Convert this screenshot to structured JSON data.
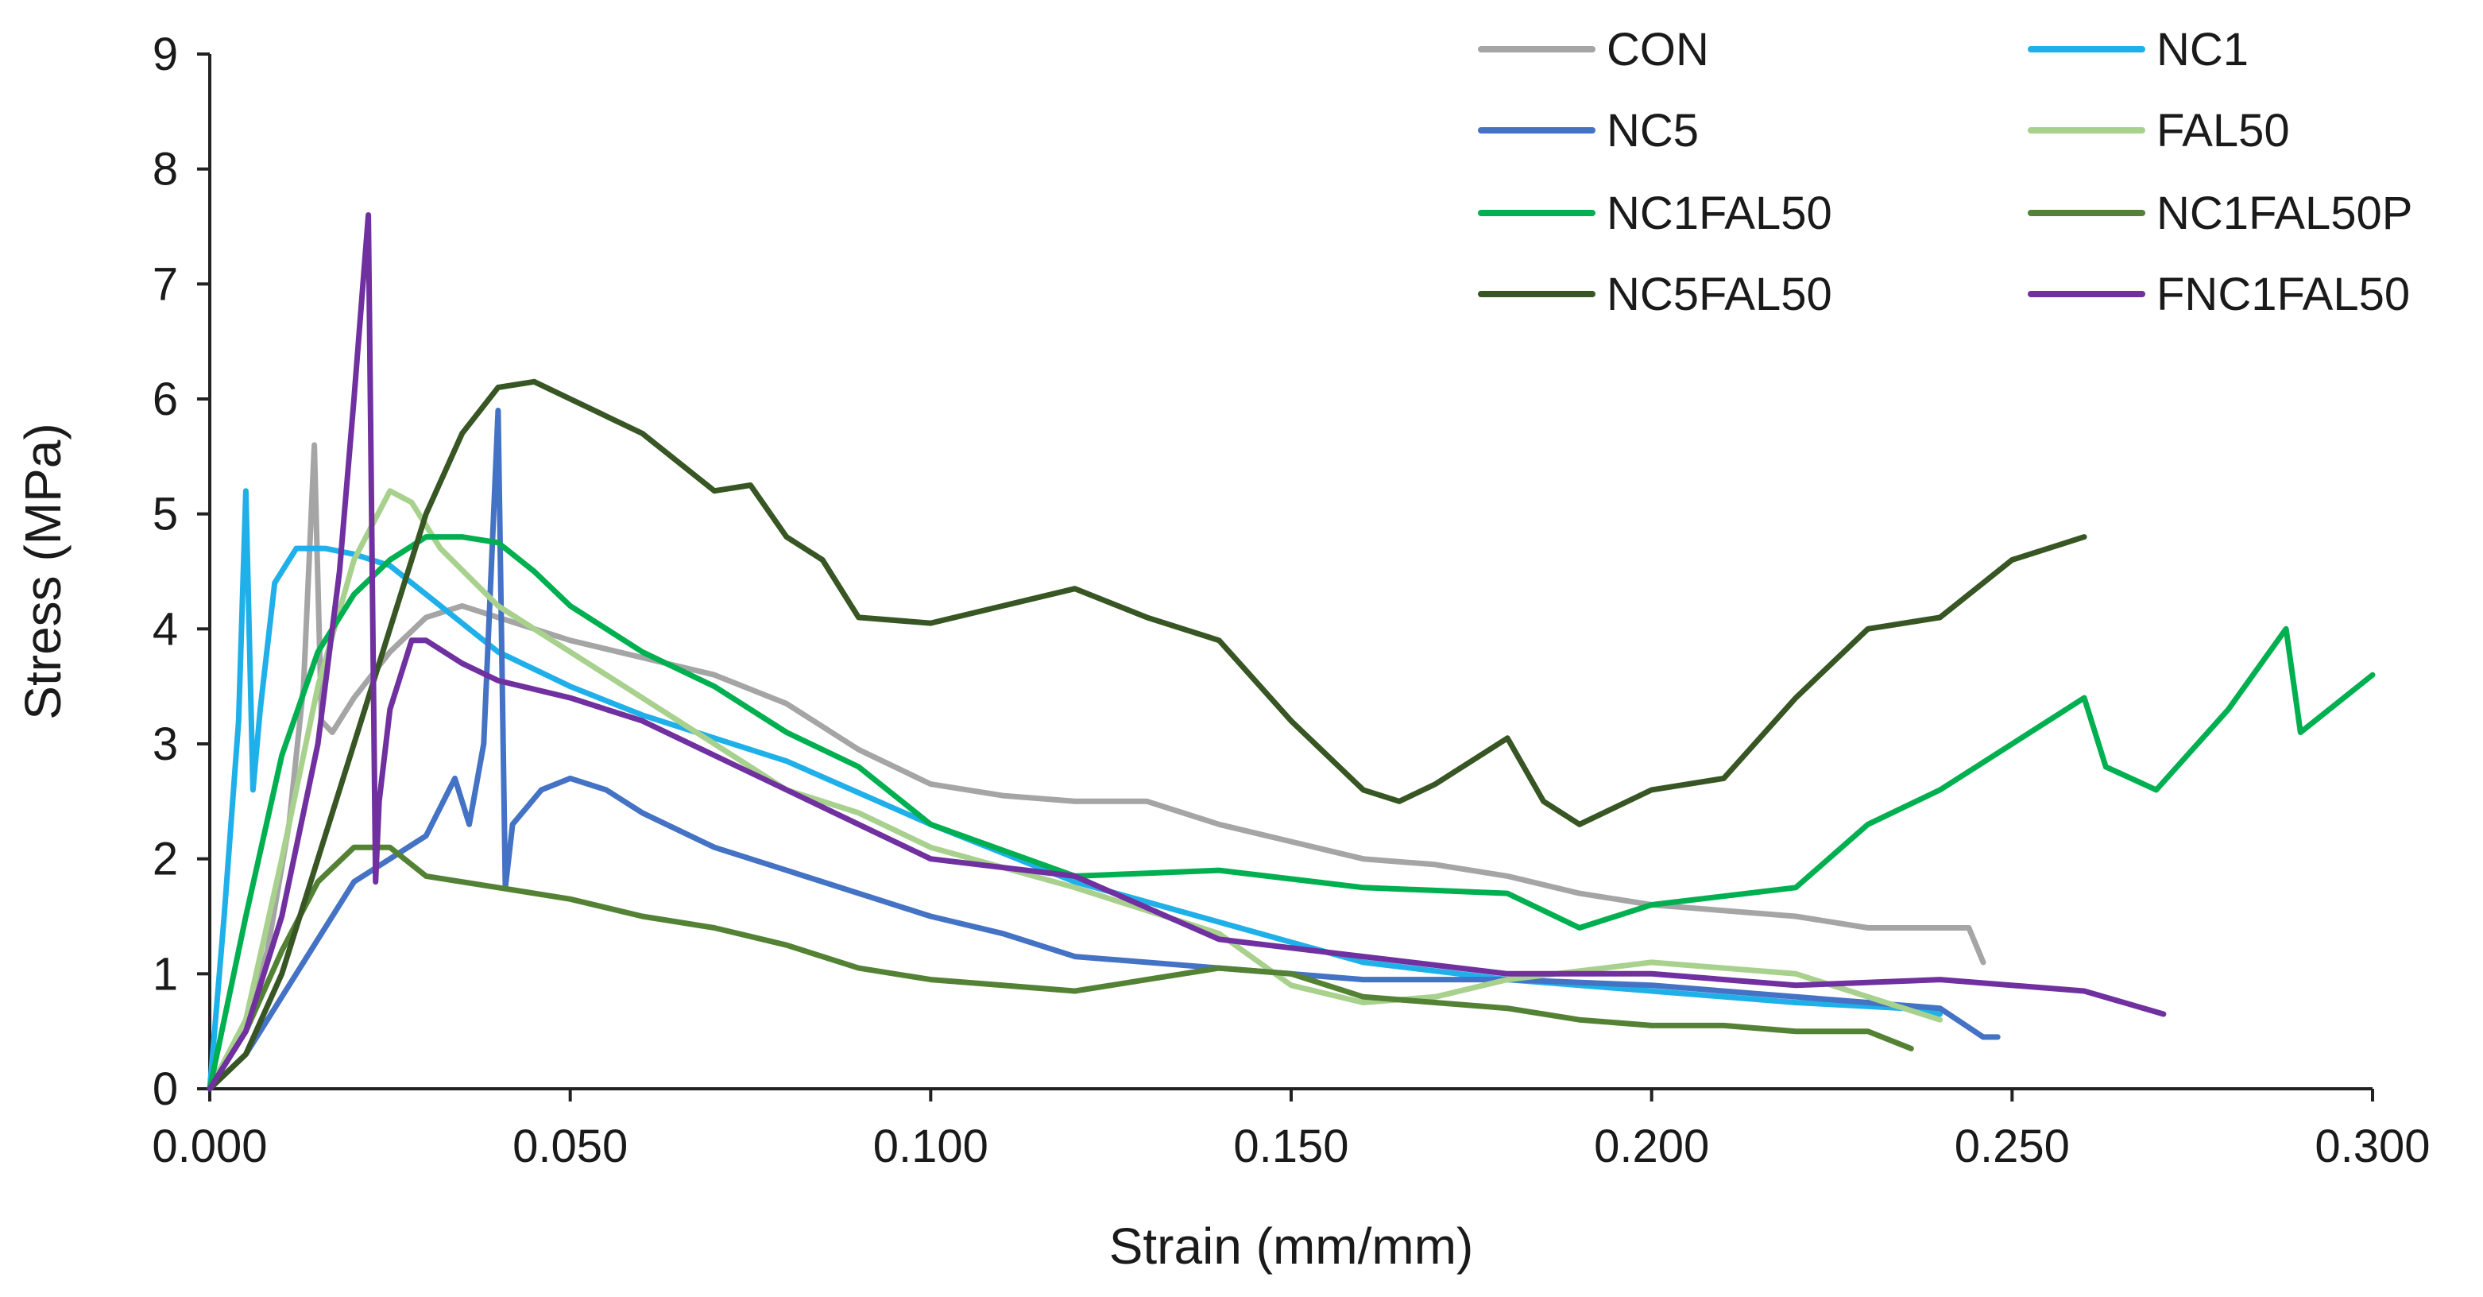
{
  "chart_data": {
    "type": "line",
    "title": "",
    "xlabel": "Strain (mm/mm)",
    "ylabel": "Stress (MPa)",
    "xlim": [
      0,
      0.3
    ],
    "ylim": [
      0,
      9
    ],
    "xticks": [
      0,
      0.05,
      0.1,
      0.15,
      0.2,
      0.25,
      0.3
    ],
    "xtick_labels": [
      "0.000",
      "0.050",
      "0.100",
      "0.150",
      "0.200",
      "0.250",
      "0.300"
    ],
    "yticks": [
      0,
      1,
      2,
      3,
      4,
      5,
      6,
      7,
      8,
      9
    ],
    "ytick_labels": [
      "0",
      "1",
      "2",
      "3",
      "4",
      "5",
      "6",
      "7",
      "8",
      "9"
    ],
    "grid": false,
    "legend_position": "top-right",
    "series": [
      {
        "name": "CON",
        "color": "#a5a5a5",
        "x": [
          0,
          0.004,
          0.008,
          0.011,
          0.013,
          0.0145,
          0.015,
          0.0155,
          0.017,
          0.02,
          0.025,
          0.03,
          0.035,
          0.04,
          0.05,
          0.06,
          0.07,
          0.08,
          0.09,
          0.1,
          0.11,
          0.12,
          0.13,
          0.14,
          0.15,
          0.16,
          0.17,
          0.18,
          0.19,
          0.2,
          0.21,
          0.22,
          0.23,
          0.24,
          0.244,
          0.246
        ],
        "y": [
          0,
          0.4,
          1.2,
          2.3,
          3.5,
          5.6,
          4.4,
          3.2,
          3.1,
          3.4,
          3.8,
          4.1,
          4.2,
          4.1,
          3.9,
          3.75,
          3.6,
          3.35,
          2.95,
          2.65,
          2.55,
          2.5,
          2.5,
          2.3,
          2.15,
          2.0,
          1.95,
          1.85,
          1.7,
          1.6,
          1.55,
          1.5,
          1.4,
          1.4,
          1.4,
          1.1
        ]
      },
      {
        "name": "NC1",
        "color": "#1fb0ea",
        "x": [
          0,
          0.002,
          0.004,
          0.005,
          0.006,
          0.007,
          0.009,
          0.012,
          0.016,
          0.02,
          0.025,
          0.03,
          0.04,
          0.05,
          0.06,
          0.08,
          0.1,
          0.12,
          0.14,
          0.16,
          0.18,
          0.2,
          0.22,
          0.235,
          0.24
        ],
        "y": [
          0,
          1.5,
          3.2,
          5.2,
          2.6,
          3.3,
          4.4,
          4.7,
          4.7,
          4.65,
          4.55,
          4.3,
          3.8,
          3.5,
          3.25,
          2.85,
          2.3,
          1.8,
          1.45,
          1.1,
          0.95,
          0.85,
          0.75,
          0.7,
          0.65
        ]
      },
      {
        "name": "NC5",
        "color": "#4472c4",
        "x": [
          0,
          0.005,
          0.01,
          0.015,
          0.02,
          0.025,
          0.03,
          0.034,
          0.036,
          0.038,
          0.04,
          0.041,
          0.042,
          0.046,
          0.05,
          0.055,
          0.06,
          0.07,
          0.08,
          0.09,
          0.1,
          0.11,
          0.12,
          0.14,
          0.16,
          0.18,
          0.2,
          0.22,
          0.23,
          0.24,
          0.246,
          0.248
        ],
        "y": [
          0,
          0.3,
          0.8,
          1.3,
          1.8,
          2.0,
          2.2,
          2.7,
          2.3,
          3.0,
          5.9,
          1.75,
          2.3,
          2.6,
          2.7,
          2.6,
          2.4,
          2.1,
          1.9,
          1.7,
          1.5,
          1.35,
          1.15,
          1.05,
          0.95,
          0.95,
          0.9,
          0.8,
          0.75,
          0.7,
          0.45,
          0.45
        ]
      },
      {
        "name": "FAL50",
        "color": "#a9d18e",
        "x": [
          0,
          0.005,
          0.01,
          0.015,
          0.02,
          0.025,
          0.028,
          0.032,
          0.04,
          0.05,
          0.06,
          0.07,
          0.08,
          0.09,
          0.1,
          0.12,
          0.14,
          0.15,
          0.16,
          0.17,
          0.18,
          0.2,
          0.22,
          0.24
        ],
        "y": [
          0,
          0.6,
          2.0,
          3.5,
          4.6,
          5.2,
          5.1,
          4.7,
          4.2,
          3.8,
          3.4,
          3.0,
          2.6,
          2.4,
          2.1,
          1.75,
          1.35,
          0.9,
          0.75,
          0.8,
          0.95,
          1.1,
          1.0,
          0.6
        ]
      },
      {
        "name": "NC1FAL50",
        "color": "#00b050",
        "x": [
          0,
          0.005,
          0.01,
          0.015,
          0.02,
          0.025,
          0.03,
          0.035,
          0.04,
          0.045,
          0.05,
          0.06,
          0.07,
          0.08,
          0.09,
          0.1,
          0.12,
          0.14,
          0.16,
          0.18,
          0.19,
          0.2,
          0.22,
          0.23,
          0.24,
          0.255,
          0.26,
          0.263,
          0.27,
          0.28,
          0.288,
          0.29,
          0.3
        ],
        "y": [
          0,
          1.5,
          2.9,
          3.8,
          4.3,
          4.6,
          4.8,
          4.8,
          4.75,
          4.5,
          4.2,
          3.8,
          3.5,
          3.1,
          2.8,
          2.3,
          1.85,
          1.9,
          1.75,
          1.7,
          1.4,
          1.6,
          1.75,
          2.3,
          2.6,
          3.2,
          3.4,
          2.8,
          2.6,
          3.3,
          4.0,
          3.1,
          3.6
        ]
      },
      {
        "name": "NC1FAL50P",
        "color": "#548235",
        "x": [
          0,
          0.005,
          0.01,
          0.015,
          0.02,
          0.025,
          0.03,
          0.04,
          0.05,
          0.06,
          0.07,
          0.08,
          0.09,
          0.1,
          0.11,
          0.12,
          0.13,
          0.14,
          0.15,
          0.16,
          0.17,
          0.18,
          0.19,
          0.2,
          0.21,
          0.22,
          0.23,
          0.236
        ],
        "y": [
          0,
          0.5,
          1.2,
          1.8,
          2.1,
          2.1,
          1.85,
          1.75,
          1.65,
          1.5,
          1.4,
          1.25,
          1.05,
          0.95,
          0.9,
          0.85,
          0.95,
          1.05,
          1.0,
          0.8,
          0.75,
          0.7,
          0.6,
          0.55,
          0.55,
          0.5,
          0.5,
          0.35
        ]
      },
      {
        "name": "NC5FAL50",
        "color": "#375623",
        "x": [
          0,
          0.005,
          0.01,
          0.015,
          0.02,
          0.025,
          0.03,
          0.035,
          0.04,
          0.045,
          0.05,
          0.06,
          0.07,
          0.075,
          0.08,
          0.085,
          0.09,
          0.1,
          0.11,
          0.12,
          0.13,
          0.14,
          0.15,
          0.16,
          0.165,
          0.17,
          0.18,
          0.185,
          0.19,
          0.2,
          0.21,
          0.22,
          0.23,
          0.24,
          0.25,
          0.255,
          0.26
        ],
        "y": [
          0,
          0.3,
          1.0,
          2.0,
          3.0,
          4.0,
          5.0,
          5.7,
          6.1,
          6.15,
          6.0,
          5.7,
          5.2,
          5.25,
          4.8,
          4.6,
          4.1,
          4.05,
          4.2,
          4.35,
          4.1,
          3.9,
          3.2,
          2.6,
          2.5,
          2.65,
          3.05,
          2.5,
          2.3,
          2.6,
          2.7,
          3.4,
          4.0,
          4.1,
          4.6,
          4.7,
          4.8
        ]
      },
      {
        "name": "FNC1FAL50",
        "color": "#7030a0",
        "x": [
          0,
          0.005,
          0.01,
          0.015,
          0.018,
          0.02,
          0.022,
          0.023,
          0.0235,
          0.025,
          0.028,
          0.03,
          0.035,
          0.04,
          0.05,
          0.06,
          0.07,
          0.08,
          0.09,
          0.1,
          0.12,
          0.14,
          0.16,
          0.18,
          0.2,
          0.22,
          0.24,
          0.26,
          0.271
        ],
        "y": [
          0,
          0.5,
          1.5,
          3.0,
          4.5,
          6.0,
          7.6,
          1.8,
          2.5,
          3.3,
          3.9,
          3.9,
          3.7,
          3.55,
          3.4,
          3.2,
          2.9,
          2.6,
          2.3,
          2.0,
          1.85,
          1.3,
          1.15,
          1.0,
          1.0,
          0.9,
          0.95,
          0.85,
          0.65
        ]
      }
    ]
  }
}
